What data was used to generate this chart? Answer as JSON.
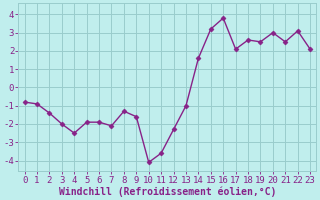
{
  "x": [
    0,
    1,
    2,
    3,
    4,
    5,
    6,
    7,
    8,
    9,
    10,
    11,
    12,
    13,
    14,
    15,
    16,
    17,
    18,
    19,
    20,
    21,
    22,
    23
  ],
  "y": [
    -0.8,
    -0.9,
    -1.4,
    -2.0,
    -2.5,
    -1.9,
    -1.9,
    -2.1,
    -1.3,
    -1.6,
    -4.1,
    -3.6,
    -2.3,
    -1.0,
    1.6,
    3.2,
    3.8,
    2.1,
    2.6,
    2.5,
    3.0,
    2.5,
    3.1,
    2.1
  ],
  "line_color": "#882288",
  "marker": "D",
  "marker_size": 2.5,
  "bg_color": "#c0eeed",
  "grid_color": "#99cccc",
  "xlabel": "Windchill (Refroidissement éolien,°C)",
  "text_color": "#882288",
  "xlim": [
    -0.5,
    23.5
  ],
  "ylim": [
    -4.6,
    4.6
  ],
  "yticks": [
    -4,
    -3,
    -2,
    -1,
    0,
    1,
    2,
    3,
    4
  ],
  "xticks": [
    0,
    1,
    2,
    3,
    4,
    5,
    6,
    7,
    8,
    9,
    10,
    11,
    12,
    13,
    14,
    15,
    16,
    17,
    18,
    19,
    20,
    21,
    22,
    23
  ],
  "xlabel_fontsize": 7.0,
  "tick_fontsize": 6.5,
  "linewidth": 1.0
}
